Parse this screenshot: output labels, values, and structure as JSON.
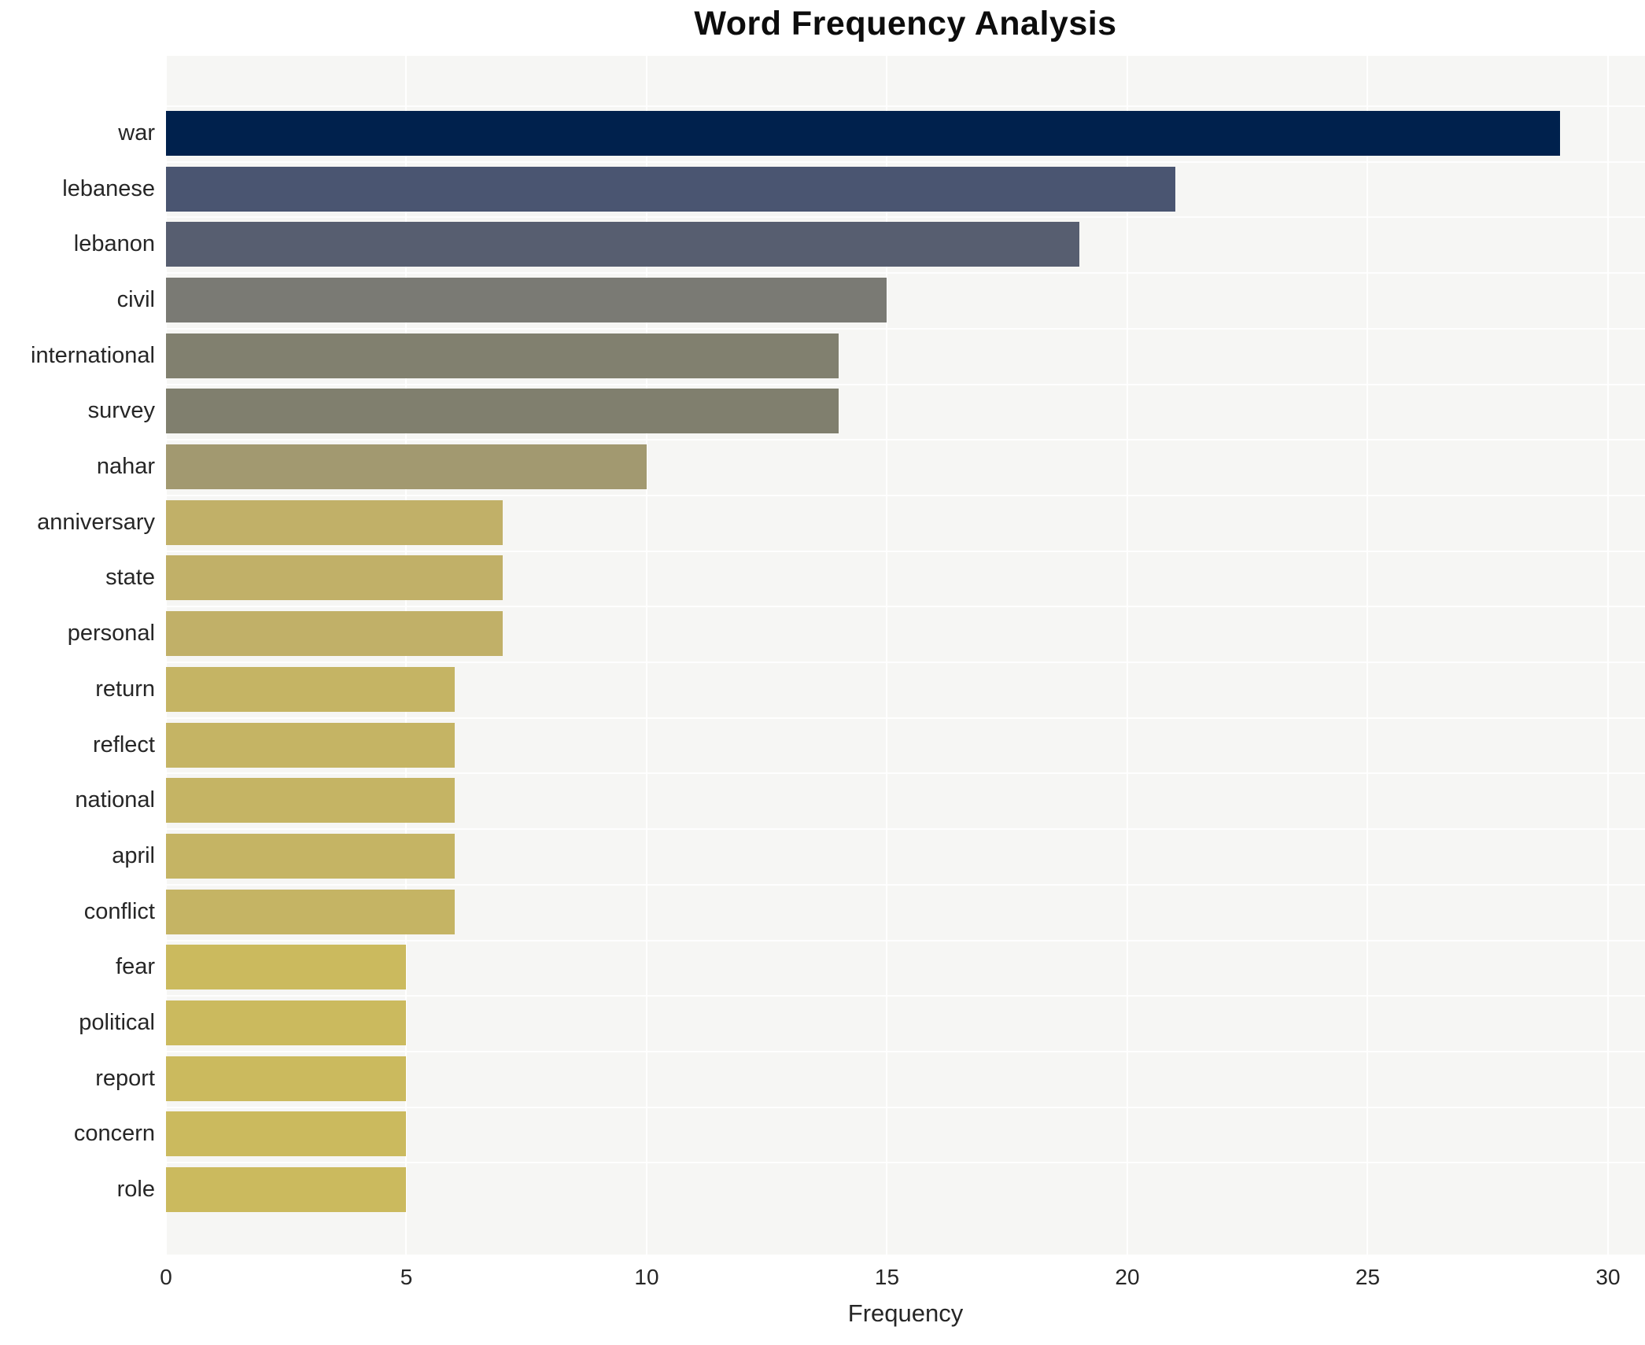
{
  "chart_data": {
    "type": "bar",
    "orientation": "horizontal",
    "title": "Word Frequency Analysis",
    "xlabel": "Frequency",
    "ylabel": "",
    "categories": [
      "war",
      "lebanese",
      "lebanon",
      "civil",
      "international",
      "survey",
      "nahar",
      "anniversary",
      "state",
      "personal",
      "return",
      "reflect",
      "national",
      "april",
      "conflict",
      "fear",
      "political",
      "report",
      "concern",
      "role"
    ],
    "values": [
      29,
      21,
      19,
      15,
      14,
      14,
      10,
      7,
      7,
      7,
      6,
      6,
      6,
      6,
      6,
      5,
      5,
      5,
      5,
      5
    ],
    "bar_colors": [
      "#00214d",
      "#4a5571",
      "#575e70",
      "#7a7a74",
      "#81806f",
      "#807f6e",
      "#a29970",
      "#c1b068",
      "#c1b068",
      "#c1b068",
      "#c5b464",
      "#c5b464",
      "#c5b464",
      "#c5b464",
      "#c5b464",
      "#cbba5e",
      "#cbba5e",
      "#cbba5e",
      "#cbba5e",
      "#cbba5e"
    ],
    "xticks": [
      0,
      5,
      10,
      15,
      20,
      25,
      30
    ],
    "xlim": [
      0,
      30.77
    ],
    "grid": "vertical white major gridlines on light gray panel, thin white row separators",
    "legend": "none",
    "plot_bg": "#f6f6f4",
    "gridline_color": "#ffffff",
    "text_color": "#262626"
  }
}
